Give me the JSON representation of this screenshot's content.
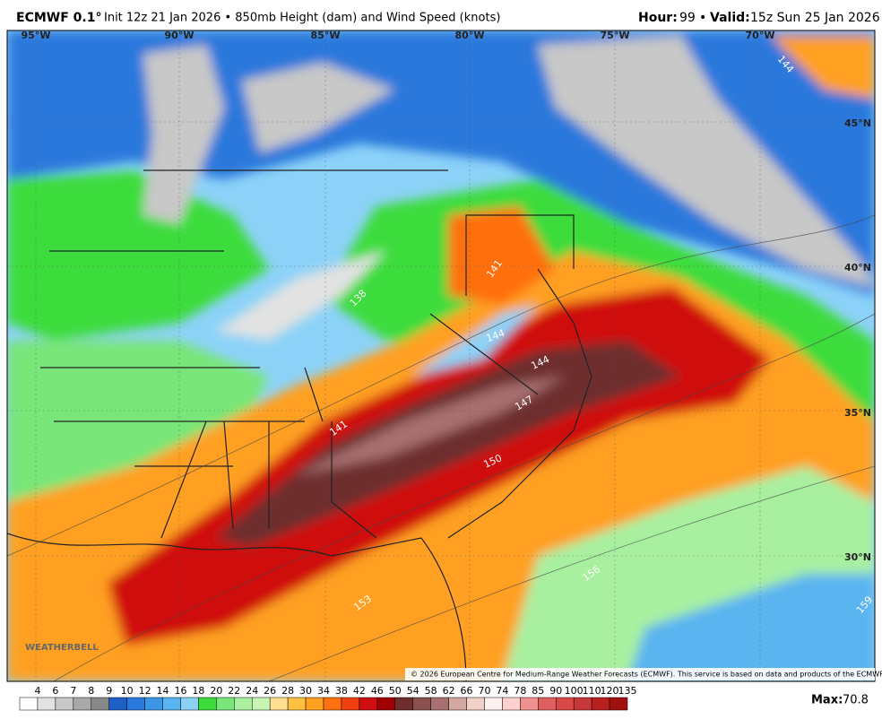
{
  "header": {
    "model": "ECMWF 0.1°",
    "init": "Init 12z 21 Jan 2026 • 850mb Height (dam) and Wind Speed (knots)",
    "hour_label": "Hour:",
    "hour": "99",
    "sep": "•",
    "valid_label": "Valid:",
    "valid": "15z Sun 25 Jan 2026"
  },
  "map": {
    "lon_labels": [
      "95°W",
      "90°W",
      "85°W",
      "80°W",
      "75°W",
      "70°W"
    ],
    "lat_labels": [
      "45°N",
      "40°N",
      "35°N",
      "30°N"
    ],
    "contour_labels": [
      "141",
      "138",
      "144",
      "144",
      "147",
      "141",
      "150",
      "153",
      "156",
      "159",
      "144"
    ],
    "logo": "WEATHERBELL",
    "copyright": "© 2026 European Centre for Medium-Range Weather Forecasts (ECMWF). This service is based on data and products of the ECMWF."
  },
  "colorbar": {
    "levels": [
      4,
      6,
      7,
      8,
      9,
      10,
      12,
      14,
      16,
      18,
      20,
      22,
      24,
      26,
      28,
      30,
      34,
      38,
      42,
      46,
      50,
      54,
      58,
      62,
      66,
      70,
      74,
      78,
      85,
      90,
      100,
      110,
      120,
      135
    ],
    "colors": [
      "#ffffff",
      "#e2e2e2",
      "#c8c8c8",
      "#a8a8a8",
      "#888888",
      "#1e5fc8",
      "#2a78dc",
      "#3c96e8",
      "#5ab4f0",
      "#8cd2f8",
      "#3cdc3c",
      "#78e678",
      "#a8f0a0",
      "#c8f5b4",
      "#ffe090",
      "#ffc040",
      "#ffa020",
      "#ff7010",
      "#f04010",
      "#d01010",
      "#a00000",
      "#6e2e2e",
      "#8a5050",
      "#a87070",
      "#d4a8a0",
      "#f0d0c8",
      "#fff0f0",
      "#ffd0d0",
      "#f09090",
      "#e06060",
      "#d84848",
      "#c83838",
      "#b82020",
      "#a01010"
    ]
  },
  "max": {
    "label": "Max:",
    "value": "70.8"
  }
}
